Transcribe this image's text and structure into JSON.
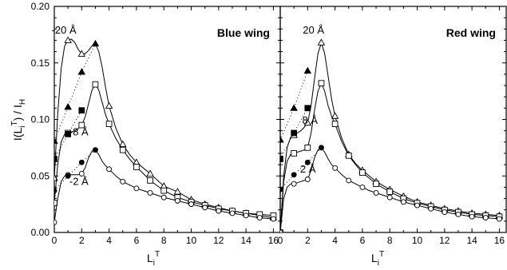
{
  "chart_data": [
    {
      "type": "line",
      "title": "Blue wing",
      "ylabel": "I(L_i^T) / I_H",
      "xlabel": "L_i^T",
      "xlim": [
        0,
        16.5
      ],
      "ylim": [
        0,
        0.2
      ],
      "x_ticks": [
        0,
        2,
        4,
        6,
        8,
        10,
        12,
        14,
        16
      ],
      "y_ticks": [
        0.0,
        0.05,
        0.1,
        0.15,
        0.2
      ],
      "y_tick_labels": [
        "0.00",
        "0.05",
        "0.10",
        "0.15",
        "0.20"
      ],
      "series": [
        {
          "name": "-20 Å",
          "marker": "triangle",
          "open_x": [
            0,
            1,
            2,
            4,
            5,
            6,
            7,
            8,
            9,
            10,
            11,
            12,
            13,
            14,
            15,
            16
          ],
          "open_y": [
            0.048,
            0.17,
            0.158,
            0.112,
            0.078,
            0.062,
            0.052,
            0.041,
            0.036,
            0.029,
            0.025,
            0.022,
            0.019,
            0.017,
            0.015,
            0.013
          ],
          "filled_x": [
            0,
            1,
            2,
            3
          ],
          "filled_y": [
            0.081,
            0.111,
            0.142,
            0.167
          ],
          "curve_x": [
            0,
            0.25,
            0.5,
            0.75,
            1.0,
            1.25,
            1.5,
            1.75,
            2.0,
            2.25,
            2.5,
            2.75,
            3.0,
            3.25,
            3.5,
            3.75,
            4.0,
            4.5,
            5.0,
            5.5,
            6.0,
            6.5,
            7.0,
            8.0,
            9.0,
            10.0,
            11.0,
            12.0,
            13.0,
            14.0,
            15.0,
            16.0
          ],
          "curve_y": [
            0.048,
            0.105,
            0.145,
            0.165,
            0.17,
            0.171,
            0.168,
            0.162,
            0.158,
            0.158,
            0.161,
            0.165,
            0.167,
            0.16,
            0.146,
            0.128,
            0.112,
            0.092,
            0.078,
            0.069,
            0.062,
            0.057,
            0.052,
            0.041,
            0.036,
            0.029,
            0.025,
            0.022,
            0.019,
            0.017,
            0.015,
            0.013
          ]
        },
        {
          "name": "-8 Å",
          "marker": "square",
          "open_x": [
            0,
            1,
            2,
            3,
            4,
            5,
            6,
            7,
            8,
            9,
            10,
            11,
            12,
            13,
            14,
            15,
            16
          ],
          "open_y": [
            0.026,
            0.088,
            0.095,
            0.131,
            0.096,
            0.073,
            0.058,
            0.046,
            0.037,
            0.031,
            0.027,
            0.024,
            0.021,
            0.019,
            0.017,
            0.016,
            0.015
          ],
          "filled_x": [
            0,
            1,
            2
          ],
          "filled_y": [
            0.065,
            0.087,
            0.108
          ],
          "curve_x": [
            0,
            0.25,
            0.5,
            0.75,
            1.0,
            1.25,
            1.5,
            1.75,
            2.0,
            2.25,
            2.5,
            2.75,
            3.0,
            3.25,
            3.5,
            3.75,
            4.0,
            4.5,
            5.0,
            5.5,
            6.0,
            6.5,
            7.0,
            8.0,
            9.0,
            10.0,
            11.0,
            12.0,
            13.0,
            14.0,
            15.0,
            16.0
          ],
          "curve_y": [
            0.026,
            0.06,
            0.08,
            0.087,
            0.088,
            0.089,
            0.09,
            0.092,
            0.095,
            0.102,
            0.114,
            0.126,
            0.131,
            0.126,
            0.115,
            0.104,
            0.096,
            0.083,
            0.073,
            0.065,
            0.058,
            0.052,
            0.046,
            0.037,
            0.031,
            0.027,
            0.024,
            0.021,
            0.019,
            0.017,
            0.016,
            0.015
          ]
        },
        {
          "name": "-2 Å",
          "marker": "circle",
          "open_x": [
            0,
            1,
            2,
            4,
            5,
            6,
            7,
            8,
            9,
            10,
            11,
            12,
            13,
            14,
            15,
            16
          ],
          "open_y": [
            0.009,
            0.051,
            0.052,
            0.056,
            0.045,
            0.039,
            0.035,
            0.031,
            0.028,
            0.025,
            0.022,
            0.019,
            0.017,
            0.015,
            0.013,
            0.012
          ],
          "filled_x": [
            0,
            1,
            2,
            3
          ],
          "filled_y": [
            0.037,
            0.05,
            0.062,
            0.073
          ],
          "curve_x": [
            0,
            0.25,
            0.5,
            0.75,
            1.0,
            1.25,
            1.5,
            1.75,
            2.0,
            2.25,
            2.5,
            2.75,
            3.0,
            3.25,
            3.5,
            3.75,
            4.0,
            4.5,
            5.0,
            5.5,
            6.0,
            6.5,
            7.0,
            8.0,
            9.0,
            10.0,
            11.0,
            12.0,
            13.0,
            14.0,
            15.0,
            16.0
          ],
          "curve_y": [
            0.009,
            0.03,
            0.045,
            0.05,
            0.051,
            0.051,
            0.051,
            0.051,
            0.052,
            0.057,
            0.066,
            0.072,
            0.073,
            0.069,
            0.063,
            0.059,
            0.056,
            0.05,
            0.045,
            0.042,
            0.039,
            0.037,
            0.035,
            0.031,
            0.028,
            0.025,
            0.022,
            0.019,
            0.017,
            0.015,
            0.013,
            0.012
          ]
        }
      ]
    },
    {
      "type": "line",
      "title": "Red wing",
      "xlabel": "L_i^T",
      "xlim": [
        0,
        16.5
      ],
      "ylim": [
        0,
        0.2
      ],
      "x_ticks": [
        0,
        2,
        4,
        6,
        8,
        10,
        12,
        14,
        16
      ],
      "y_ticks": [
        0.0,
        0.05,
        0.1,
        0.15,
        0.2
      ],
      "series": [
        {
          "name": "20 Å",
          "marker": "triangle",
          "open_x": [
            0,
            1,
            2,
            3,
            4,
            5,
            6,
            7,
            8,
            9,
            10,
            11,
            12,
            13,
            14,
            15,
            16
          ],
          "open_y": [
            0.0,
            0.086,
            0.097,
            0.168,
            0.103,
            0.069,
            0.055,
            0.045,
            0.038,
            0.032,
            0.027,
            0.024,
            0.021,
            0.019,
            0.017,
            0.016,
            0.015
          ],
          "filled_x": [
            0,
            1,
            2
          ],
          "filled_y": [
            0.082,
            0.11,
            0.143
          ],
          "curve_x": [
            0,
            0.25,
            0.5,
            0.75,
            1.0,
            1.25,
            1.5,
            1.75,
            2.0,
            2.25,
            2.5,
            2.75,
            3.0,
            3.25,
            3.5,
            3.75,
            4.0,
            4.5,
            5.0,
            5.5,
            6.0,
            6.5,
            7.0,
            8.0,
            9.0,
            10.0,
            11.0,
            12.0,
            13.0,
            14.0,
            15.0,
            16.0
          ],
          "curve_y": [
            0.0,
            0.05,
            0.075,
            0.084,
            0.086,
            0.088,
            0.09,
            0.093,
            0.097,
            0.112,
            0.136,
            0.158,
            0.168,
            0.158,
            0.138,
            0.118,
            0.103,
            0.083,
            0.069,
            0.061,
            0.055,
            0.05,
            0.045,
            0.038,
            0.032,
            0.027,
            0.024,
            0.021,
            0.019,
            0.017,
            0.016,
            0.015
          ]
        },
        {
          "name": "8 Å",
          "marker": "square",
          "open_x": [
            0,
            1,
            2,
            3,
            4,
            5,
            6,
            7,
            8,
            9,
            10,
            11,
            12,
            13,
            14,
            15,
            16
          ],
          "open_y": [
            0.0,
            0.07,
            0.075,
            0.132,
            0.096,
            0.068,
            0.053,
            0.043,
            0.036,
            0.03,
            0.026,
            0.023,
            0.02,
            0.018,
            0.016,
            0.015,
            0.014
          ],
          "filled_x": [
            0,
            1,
            2
          ],
          "filled_y": [
            0.065,
            0.088,
            0.11
          ],
          "curve_x": [
            0,
            0.25,
            0.5,
            0.75,
            1.0,
            1.25,
            1.5,
            1.75,
            2.0,
            2.25,
            2.5,
            2.75,
            3.0,
            3.25,
            3.5,
            3.75,
            4.0,
            4.5,
            5.0,
            5.5,
            6.0,
            6.5,
            7.0,
            8.0,
            9.0,
            10.0,
            11.0,
            12.0,
            13.0,
            14.0,
            15.0,
            16.0
          ],
          "curve_y": [
            0.0,
            0.045,
            0.063,
            0.069,
            0.07,
            0.071,
            0.072,
            0.073,
            0.075,
            0.088,
            0.108,
            0.125,
            0.132,
            0.125,
            0.112,
            0.103,
            0.096,
            0.08,
            0.068,
            0.06,
            0.053,
            0.048,
            0.043,
            0.036,
            0.03,
            0.026,
            0.023,
            0.02,
            0.018,
            0.016,
            0.015,
            0.014
          ]
        },
        {
          "name": "2 Å",
          "marker": "circle",
          "open_x": [
            0,
            1,
            2,
            4,
            5,
            6,
            7,
            8,
            9,
            10,
            11,
            12,
            13,
            14,
            15,
            16
          ],
          "open_y": [
            0.0,
            0.043,
            0.047,
            0.057,
            0.046,
            0.04,
            0.035,
            0.031,
            0.027,
            0.024,
            0.021,
            0.018,
            0.016,
            0.014,
            0.013,
            0.012
          ],
          "filled_x": [
            0,
            1,
            2,
            3
          ],
          "filled_y": [
            0.038,
            0.051,
            0.062,
            0.075
          ],
          "curve_x": [
            0,
            0.25,
            0.5,
            0.75,
            1.0,
            1.25,
            1.5,
            1.75,
            2.0,
            2.25,
            2.5,
            2.75,
            3.0,
            3.25,
            3.5,
            3.75,
            4.0,
            4.5,
            5.0,
            5.5,
            6.0,
            6.5,
            7.0,
            8.0,
            9.0,
            10.0,
            11.0,
            12.0,
            13.0,
            14.0,
            15.0,
            16.0
          ],
          "curve_y": [
            0.0,
            0.03,
            0.04,
            0.043,
            0.043,
            0.044,
            0.045,
            0.046,
            0.047,
            0.055,
            0.066,
            0.073,
            0.075,
            0.071,
            0.065,
            0.06,
            0.057,
            0.051,
            0.046,
            0.043,
            0.04,
            0.037,
            0.035,
            0.031,
            0.027,
            0.024,
            0.021,
            0.018,
            0.016,
            0.014,
            0.013,
            0.012
          ]
        }
      ]
    }
  ]
}
